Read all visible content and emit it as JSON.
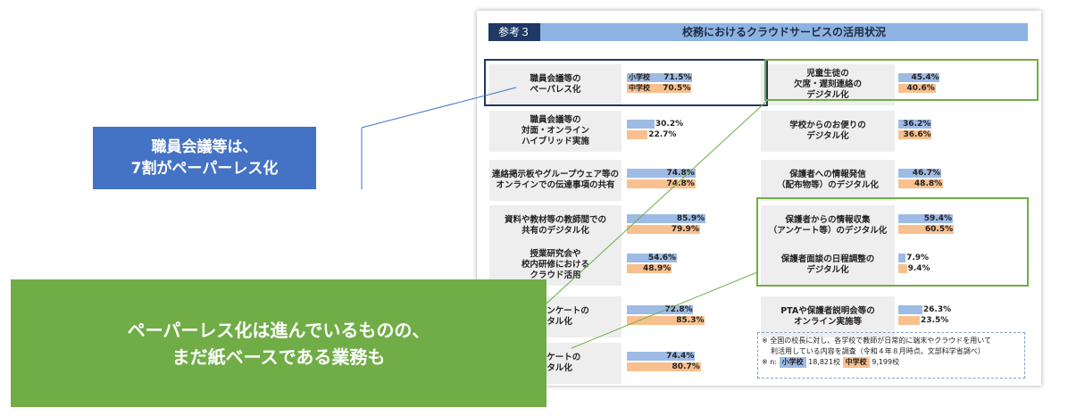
{
  "header": {
    "tag": "参考３",
    "title": "校務におけるクラウドサービスの活用状況"
  },
  "legend": {
    "elementary": "小学校",
    "junior": "中学校"
  },
  "colors": {
    "elementary": "#9dbbe5",
    "junior": "#f8c08e",
    "header": "#8db3e2",
    "header_tag": "#1f3864"
  },
  "chart_data": {
    "type": "bar",
    "unit": "%",
    "series_names": [
      "小学校",
      "中学校"
    ],
    "items": [
      {
        "label": "職員会議等の\nペーパレス化",
        "elementary": 71.5,
        "junior": 70.5,
        "elementary_text": "71.5%",
        "junior_text": "70.5%"
      },
      {
        "label": "職員会議等の\n対面・オンライン\nハイブリッド実施",
        "elementary": 30.2,
        "junior": 22.7,
        "elementary_text": "30.2%",
        "junior_text": "22.7%"
      },
      {
        "label": "連絡掲示板やグループウェア等の\nオンラインでの伝達事項の共有",
        "elementary": 74.8,
        "junior": 74.8,
        "elementary_text": "74.8%",
        "junior_text": "74.8%"
      },
      {
        "label": "資料や教材等の教師間での\n共有のデジタル化",
        "elementary": 85.9,
        "junior": 79.9,
        "elementary_text": "85.9%",
        "junior_text": "79.9%"
      },
      {
        "label": "授業研究会や\n校内研修における\nクラウド活用",
        "elementary": 54.6,
        "junior": 48.9,
        "elementary_text": "54.6%",
        "junior_text": "48.9%"
      },
      {
        "label": "向けアンケートの\nジタル化",
        "elementary": 72.8,
        "junior": 85.3,
        "elementary_text": "72.8%",
        "junior_text": "85.3%"
      },
      {
        "label": "アンケートの\nジタル化",
        "elementary": 74.4,
        "junior": 80.7,
        "elementary_text": "74.4%",
        "junior_text": "80.7%"
      },
      {
        "label": "児童生徒の\n欠席・遅刻連絡の\nデジタル化",
        "elementary": 45.4,
        "junior": 40.6,
        "elementary_text": "45.4%",
        "junior_text": "40.6%"
      },
      {
        "label": "学校からのお便りの\nデジタル化",
        "elementary": 36.2,
        "junior": 36.6,
        "elementary_text": "36.2%",
        "junior_text": "36.6%"
      },
      {
        "label": "保護者への情報発信\n（配布物等）のデジタル化",
        "elementary": 46.7,
        "junior": 48.8,
        "elementary_text": "46.7%",
        "junior_text": "48.8%"
      },
      {
        "label": "保護者からの情報収集\n（アンケート等）のデジタル化",
        "elementary": 59.4,
        "junior": 60.5,
        "elementary_text": "59.4%",
        "junior_text": "60.5%"
      },
      {
        "label": "保護者面談の日程調整の\nデジタル化",
        "elementary": 7.9,
        "junior": 9.4,
        "elementary_text": "7.9%",
        "junior_text": "9.4%"
      },
      {
        "label": "PTAや保護者説明会等の\nオンライン実施等",
        "elementary": 26.3,
        "junior": 23.5,
        "elementary_text": "26.3%",
        "junior_text": "23.5%"
      }
    ]
  },
  "note": {
    "line1": "※ 全国の校長に対し、各学校で教師が日常的に端末やクラウドを用いて",
    "line2": "利活用している内容を調査（令和４年８月時点。文部科学省調べ）",
    "n_prefix": "※ n:",
    "elementary_label": "小学校",
    "elementary_n": "18,821校",
    "junior_label": "中学校",
    "junior_n": "9,199校"
  },
  "callouts": {
    "blue": {
      "text": "職員会議等は、\n7割がペーパーレス化",
      "color": "#4472c4"
    },
    "green": {
      "text": "ペーパーレス化は進んでいるものの、\nまだ紙ベースである業務も",
      "color": "#70ad47"
    }
  }
}
